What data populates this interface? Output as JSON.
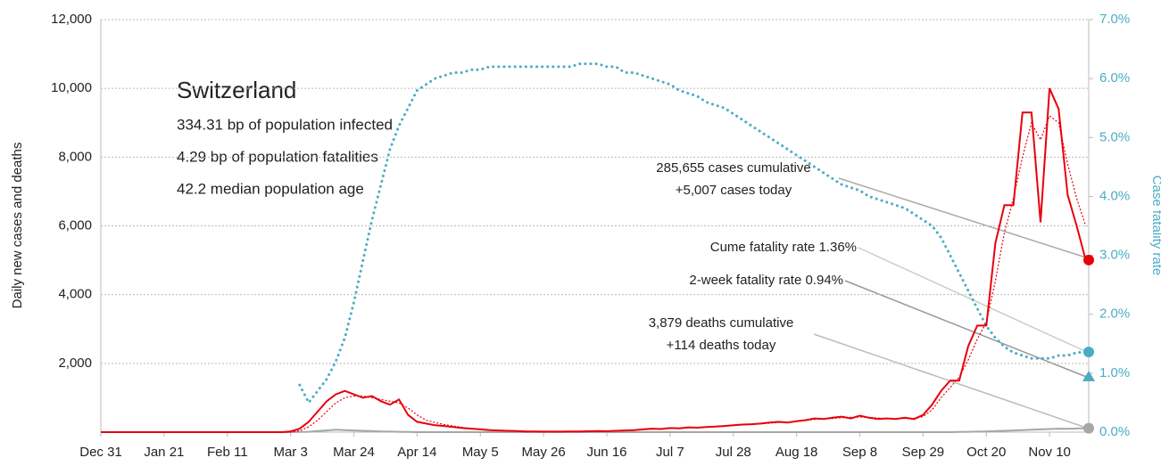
{
  "chart_data": {
    "type": "line",
    "y_label": "Daily new cases and deaths",
    "y2_label": "Case fatality rate",
    "country": "Switzerland",
    "info": [
      "334.31 bp of population infected",
      "4.29 bp of population fatalities",
      "42.2 median population age"
    ],
    "annotations": [
      "285,655 cases cumulative",
      "+5,007 cases today",
      "Cume fatality rate 1.36%",
      "2-week fatality rate 0.94%",
      "3,879 deaths cumulative",
      "+114 deaths today"
    ],
    "two_week_fatality_rate": 0.94,
    "x": [
      0,
      3,
      6,
      9,
      12,
      15,
      18,
      21,
      24,
      27,
      30,
      33,
      36,
      39,
      42,
      45,
      48,
      51,
      54,
      57,
      60,
      63,
      66,
      69,
      72,
      75,
      78,
      81,
      84,
      87,
      90,
      93,
      96,
      99,
      102,
      105,
      108,
      111,
      114,
      117,
      120,
      123,
      126,
      129,
      132,
      135,
      138,
      141,
      144,
      147,
      150,
      153,
      156,
      159,
      162,
      165,
      168,
      171,
      174,
      177,
      180,
      183,
      186,
      189,
      192,
      195,
      198,
      201,
      204,
      207,
      210,
      213,
      216,
      219,
      222,
      225,
      228,
      231,
      234,
      237,
      240,
      243,
      246,
      249,
      252,
      255,
      258,
      261,
      264,
      267,
      270,
      273,
      276,
      279,
      282,
      285,
      288,
      291,
      294,
      297,
      300,
      303,
      306,
      309,
      312,
      315,
      318,
      321,
      324,
      327
    ],
    "xlim": [
      0,
      328
    ],
    "xticks": [
      {
        "value": 0,
        "label": "Dec 31"
      },
      {
        "value": 21,
        "label": "Jan 21"
      },
      {
        "value": 42,
        "label": "Feb 11"
      },
      {
        "value": 63,
        "label": "Mar 3"
      },
      {
        "value": 84,
        "label": "Mar 24"
      },
      {
        "value": 105,
        "label": "Apr 14"
      },
      {
        "value": 126,
        "label": "May 5"
      },
      {
        "value": 147,
        "label": "May 26"
      },
      {
        "value": 168,
        "label": "Jun 16"
      },
      {
        "value": 189,
        "label": "Jul 7"
      },
      {
        "value": 210,
        "label": "Jul 28"
      },
      {
        "value": 231,
        "label": "Aug 18"
      },
      {
        "value": 252,
        "label": "Sep 8"
      },
      {
        "value": 273,
        "label": "Sep 29"
      },
      {
        "value": 294,
        "label": "Oct 20"
      },
      {
        "value": 315,
        "label": "Nov 10"
      }
    ],
    "ylim": [
      0,
      12000
    ],
    "yticks": [
      {
        "value": 2000,
        "label": "2,000"
      },
      {
        "value": 4000,
        "label": "4,000"
      },
      {
        "value": 6000,
        "label": "6,000"
      },
      {
        "value": 8000,
        "label": "8,000"
      },
      {
        "value": 10000,
        "label": "10,000"
      },
      {
        "value": 12000,
        "label": "12,000"
      }
    ],
    "y2lim": [
      0,
      7
    ],
    "y2ticks": [
      {
        "value": 0,
        "label": "0.0%"
      },
      {
        "value": 1,
        "label": "1.0%"
      },
      {
        "value": 2,
        "label": "2.0%"
      },
      {
        "value": 3,
        "label": "3.0%"
      },
      {
        "value": 4,
        "label": "4.0%"
      },
      {
        "value": 5,
        "label": "5.0%"
      },
      {
        "value": 6,
        "label": "6.0%"
      },
      {
        "value": 7,
        "label": "7.0%"
      }
    ],
    "grid": true,
    "series": [
      {
        "color": "#e8000b",
        "style": "solid",
        "values": [
          0,
          0,
          0,
          0,
          0,
          0,
          0,
          0,
          0,
          0,
          0,
          0,
          0,
          0,
          0,
          0,
          0,
          0,
          0,
          0,
          0,
          20,
          100,
          300,
          600,
          900,
          1100,
          1200,
          1100,
          1000,
          1050,
          900,
          800,
          950,
          500,
          300,
          250,
          200,
          180,
          150,
          120,
          100,
          80,
          60,
          50,
          40,
          30,
          20,
          20,
          15,
          15,
          15,
          20,
          20,
          25,
          30,
          25,
          40,
          50,
          60,
          80,
          100,
          90,
          120,
          110,
          140,
          130,
          150,
          160,
          180,
          200,
          220,
          230,
          250,
          280,
          300,
          280,
          320,
          350,
          400,
          380,
          420,
          450,
          400,
          480,
          420,
          380,
          400,
          380,
          420,
          380,
          500,
          800,
          1200,
          1500,
          1500,
          2500,
          3100,
          3100,
          5500,
          6600,
          6600,
          9300,
          9300,
          6100,
          10000,
          9400,
          6900,
          6000,
          5007
        ]
      },
      {
        "color": "#e8000b",
        "style": "dotted",
        "values": [
          0,
          0,
          0,
          0,
          0,
          0,
          0,
          0,
          0,
          0,
          0,
          0,
          0,
          0,
          0,
          0,
          0,
          0,
          0,
          0,
          0,
          5,
          40,
          150,
          350,
          600,
          850,
          1000,
          1050,
          1050,
          1000,
          950,
          900,
          850,
          700,
          500,
          350,
          280,
          220,
          180,
          140,
          110,
          90,
          70,
          55,
          45,
          35,
          28,
          22,
          18,
          16,
          16,
          18,
          20,
          22,
          25,
          28,
          33,
          42,
          52,
          70,
          85,
          95,
          105,
          115,
          125,
          135,
          145,
          155,
          170,
          190,
          210,
          225,
          240,
          260,
          280,
          290,
          310,
          340,
          370,
          385,
          400,
          420,
          430,
          440,
          430,
          410,
          400,
          395,
          400,
          400,
          450,
          650,
          1000,
          1300,
          1600,
          2100,
          2700,
          3200,
          4400,
          5800,
          6800,
          8000,
          9000,
          8500,
          9200,
          9000,
          7800,
          6800,
          6000
        ]
      },
      {
        "color": "#4bacc6",
        "style": "cfr",
        "axis": "y2",
        "values": [
          null,
          null,
          null,
          null,
          null,
          null,
          null,
          null,
          null,
          null,
          null,
          null,
          null,
          null,
          null,
          null,
          null,
          null,
          null,
          null,
          null,
          null,
          0.8,
          0.5,
          0.7,
          0.9,
          1.2,
          1.6,
          2.2,
          2.9,
          3.6,
          4.2,
          4.8,
          5.2,
          5.5,
          5.8,
          5.9,
          6.0,
          6.05,
          6.1,
          6.1,
          6.15,
          6.15,
          6.2,
          6.2,
          6.2,
          6.2,
          6.2,
          6.2,
          6.2,
          6.2,
          6.2,
          6.2,
          6.25,
          6.25,
          6.25,
          6.2,
          6.2,
          6.1,
          6.1,
          6.05,
          6.0,
          5.95,
          5.9,
          5.8,
          5.75,
          5.7,
          5.6,
          5.55,
          5.5,
          5.4,
          5.3,
          5.2,
          5.1,
          5.0,
          4.9,
          4.8,
          4.7,
          4.6,
          4.5,
          4.4,
          4.3,
          4.2,
          4.15,
          4.1,
          4.0,
          3.95,
          3.9,
          3.85,
          3.8,
          3.7,
          3.6,
          3.5,
          3.3,
          3.0,
          2.7,
          2.4,
          2.1,
          1.8,
          1.6,
          1.45,
          1.35,
          1.3,
          1.25,
          1.25,
          1.25,
          1.3,
          1.3,
          1.35,
          1.36
        ]
      },
      {
        "color": "#a6a6a6",
        "style": "solid",
        "values": [
          0,
          0,
          0,
          0,
          0,
          0,
          0,
          0,
          0,
          0,
          0,
          0,
          0,
          0,
          0,
          0,
          0,
          0,
          0,
          0,
          0,
          0,
          5,
          10,
          30,
          50,
          70,
          60,
          50,
          40,
          30,
          20,
          15,
          10,
          5,
          0,
          0,
          0,
          0,
          0,
          0,
          0,
          0,
          0,
          0,
          0,
          0,
          0,
          0,
          0,
          0,
          0,
          0,
          0,
          0,
          0,
          0,
          0,
          0,
          0,
          0,
          0,
          0,
          0,
          0,
          0,
          0,
          0,
          0,
          0,
          0,
          0,
          0,
          0,
          0,
          0,
          0,
          0,
          0,
          0,
          0,
          0,
          0,
          0,
          0,
          0,
          0,
          0,
          0,
          0,
          0,
          0,
          0,
          0,
          0,
          5,
          10,
          15,
          20,
          30,
          40,
          50,
          60,
          70,
          80,
          90,
          100,
          95,
          105,
          114
        ]
      }
    ]
  }
}
